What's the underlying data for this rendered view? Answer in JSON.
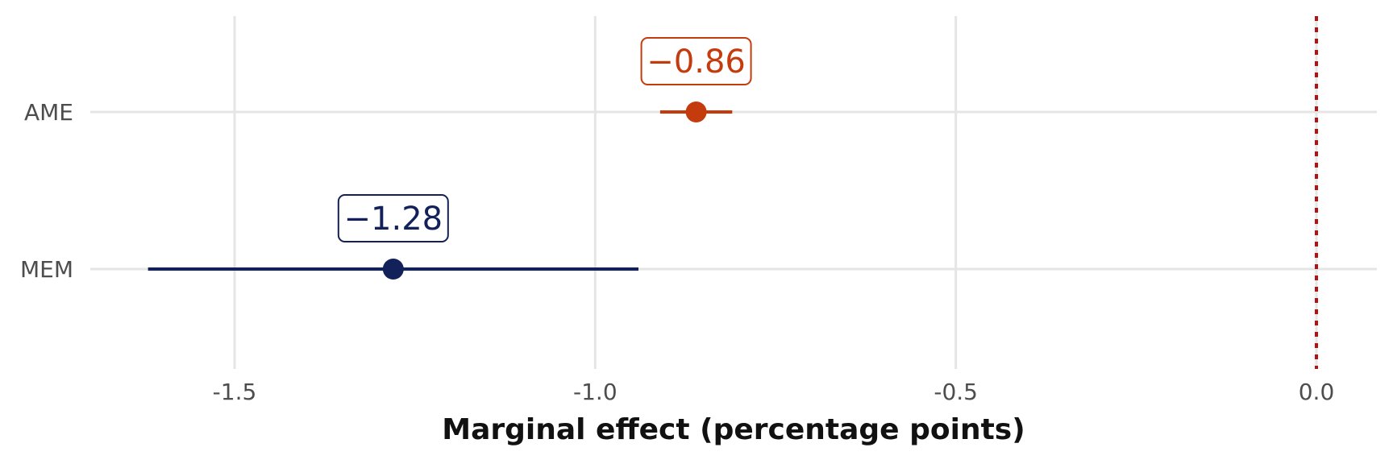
{
  "chart_data": {
    "type": "scatter",
    "title": "",
    "xlabel": "Marginal effect (percentage points)",
    "ylabel": "",
    "xlim": [
      -1.7,
      0.08
    ],
    "x_ticks": [
      -1.5,
      -1.0,
      -0.5,
      0.0
    ],
    "x_tick_labels": [
      "-1.5",
      "-1.0",
      "-0.5",
      "0.0"
    ],
    "categories": [
      "AME",
      "MEM"
    ],
    "reference_line": 0.0,
    "grid": true,
    "points": [
      {
        "category": "AME",
        "estimate": -0.86,
        "ci_low": -0.91,
        "ci_high": -0.81,
        "label": "−0.86",
        "color": "#c43c0d"
      },
      {
        "category": "MEM",
        "estimate": -1.28,
        "ci_low": -1.62,
        "ci_high": -0.94,
        "label": "−1.28",
        "color": "#13215a"
      }
    ]
  }
}
